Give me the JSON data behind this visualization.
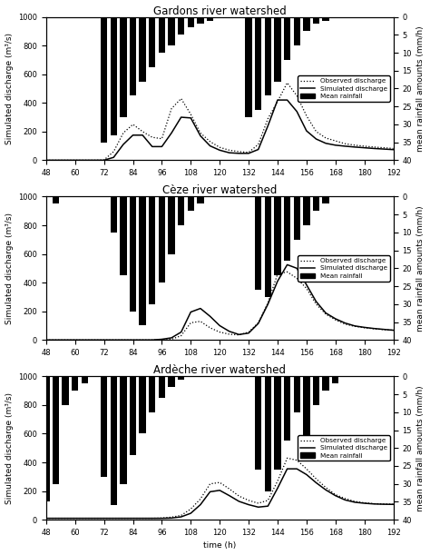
{
  "titles": [
    "Gardons river watershed",
    "Cèze river watershed",
    "Ardèche river watershed"
  ],
  "time": [
    48,
    52,
    56,
    60,
    64,
    68,
    72,
    76,
    80,
    84,
    88,
    92,
    96,
    100,
    104,
    108,
    112,
    116,
    120,
    124,
    128,
    132,
    136,
    140,
    144,
    148,
    152,
    156,
    160,
    164,
    168,
    172,
    176,
    180,
    184,
    188,
    192
  ],
  "xlim": [
    48,
    192
  ],
  "xticks": [
    48,
    60,
    72,
    84,
    96,
    108,
    120,
    132,
    144,
    156,
    168,
    180,
    192
  ],
  "ylim_discharge": [
    0,
    1000
  ],
  "yticks_discharge": [
    0,
    200,
    400,
    600,
    800,
    1000
  ],
  "ylim_rainfall": [
    40,
    0
  ],
  "yticks_rainfall": [
    0,
    5,
    10,
    15,
    20,
    25,
    30,
    35,
    40
  ],
  "xlabel": "time (h)",
  "ylabel_left": "Simulated discharge (m³/s)",
  "ylabel_right": "mean rainfall amounts (mm/h)",
  "panel1": {
    "observed": [
      0,
      0,
      0,
      0,
      0,
      0,
      2,
      60,
      190,
      250,
      200,
      160,
      150,
      360,
      430,
      320,
      190,
      130,
      90,
      70,
      60,
      55,
      110,
      290,
      410,
      540,
      450,
      310,
      200,
      155,
      135,
      115,
      105,
      98,
      92,
      87,
      82
    ],
    "simulated": [
      0,
      0,
      0,
      0,
      0,
      0,
      0,
      20,
      110,
      175,
      175,
      95,
      95,
      190,
      300,
      295,
      170,
      100,
      70,
      52,
      48,
      48,
      75,
      240,
      420,
      420,
      340,
      205,
      148,
      118,
      105,
      98,
      92,
      87,
      82,
      78,
      74
    ],
    "rainfall": [
      0,
      0,
      0,
      0,
      0,
      0,
      35,
      33,
      28,
      22,
      18,
      14,
      10,
      8,
      5,
      3,
      2,
      1,
      0,
      0,
      0,
      28,
      26,
      22,
      18,
      12,
      8,
      4,
      2,
      1,
      0,
      0,
      0,
      0,
      0,
      0,
      0
    ]
  },
  "panel2": {
    "observed": [
      0,
      0,
      0,
      0,
      0,
      0,
      0,
      0,
      0,
      0,
      0,
      0,
      0,
      5,
      30,
      120,
      130,
      85,
      55,
      40,
      35,
      55,
      120,
      260,
      460,
      475,
      430,
      360,
      250,
      180,
      140,
      110,
      95,
      85,
      78,
      72,
      68
    ],
    "simulated": [
      0,
      0,
      0,
      0,
      0,
      0,
      0,
      0,
      0,
      0,
      0,
      0,
      5,
      15,
      55,
      195,
      220,
      165,
      100,
      60,
      38,
      48,
      115,
      250,
      410,
      525,
      500,
      385,
      268,
      188,
      148,
      118,
      98,
      88,
      80,
      74,
      68
    ],
    "rainfall": [
      0,
      2,
      0,
      0,
      0,
      0,
      0,
      10,
      22,
      32,
      36,
      30,
      24,
      16,
      8,
      4,
      2,
      0,
      0,
      0,
      0,
      0,
      26,
      28,
      22,
      18,
      12,
      8,
      4,
      2,
      0,
      0,
      0,
      0,
      0,
      0,
      0
    ]
  },
  "panel3": {
    "observed": [
      10,
      10,
      10,
      10,
      10,
      10,
      10,
      10,
      10,
      10,
      10,
      10,
      12,
      18,
      30,
      75,
      145,
      250,
      260,
      215,
      165,
      135,
      115,
      135,
      270,
      430,
      415,
      355,
      285,
      225,
      175,
      148,
      128,
      118,
      112,
      110,
      108
    ],
    "simulated": [
      10,
      10,
      10,
      10,
      10,
      10,
      10,
      10,
      10,
      10,
      10,
      10,
      10,
      12,
      20,
      45,
      105,
      195,
      205,
      168,
      128,
      105,
      88,
      95,
      220,
      355,
      355,
      315,
      258,
      208,
      168,
      138,
      122,
      115,
      110,
      108,
      107
    ],
    "rainfall": [
      35,
      30,
      8,
      4,
      2,
      0,
      28,
      36,
      30,
      22,
      16,
      10,
      6,
      3,
      1,
      0,
      0,
      0,
      0,
      0,
      0,
      0,
      26,
      32,
      26,
      18,
      10,
      20,
      8,
      4,
      2,
      0,
      0,
      0,
      0,
      0,
      0
    ]
  },
  "bar_width": 2.8,
  "legend_labels": [
    "Observed discharge",
    "Simulated discharge",
    "Mean rainfall"
  ],
  "fontsize_title": 8.5,
  "fontsize_labels": 6.5,
  "fontsize_ticks": 6.0
}
